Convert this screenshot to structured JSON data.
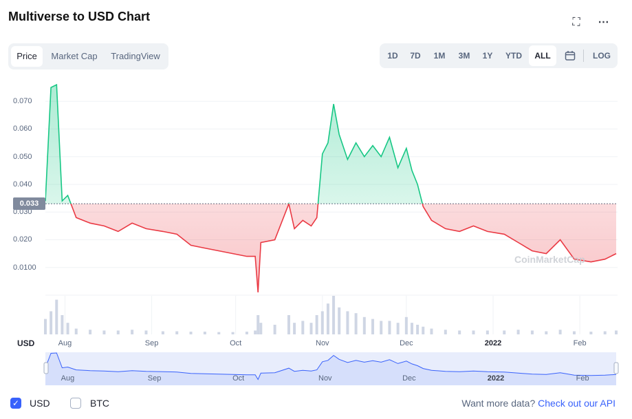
{
  "header": {
    "title": "Multiverse to USD Chart",
    "expand_icon": "expand-icon",
    "more_icon": "more-icon"
  },
  "tabs": [
    {
      "label": "Price",
      "active": true
    },
    {
      "label": "Market Cap",
      "active": false
    },
    {
      "label": "TradingView",
      "active": false
    }
  ],
  "ranges": [
    {
      "label": "1D",
      "active": false
    },
    {
      "label": "7D",
      "active": false
    },
    {
      "label": "1M",
      "active": false
    },
    {
      "label": "3M",
      "active": false
    },
    {
      "label": "1Y",
      "active": false
    },
    {
      "label": "YTD",
      "active": false
    },
    {
      "label": "ALL",
      "active": true
    }
  ],
  "calendar_icon": "calendar-icon",
  "log_label": "LOG",
  "current_price_label": "0.033",
  "watermark": "CoinMarketCap",
  "currency_axis_label": "USD",
  "legend": {
    "usd_label": "USD",
    "usd_checked": true,
    "btc_label": "BTC",
    "btc_checked": false
  },
  "footer": {
    "prefix": "Want more data?",
    "link": "Check out our API"
  },
  "colors": {
    "up": "#16c784",
    "down": "#ea3943",
    "volume": "#cfd6e4",
    "navigator_line": "#3861fb",
    "accent": "#3861fb"
  },
  "chart_data": {
    "type": "line",
    "title": "Multiverse to USD Chart",
    "baseline": 0.033,
    "ylim": [
      0,
      0.078
    ],
    "yticks": [
      "0.0100",
      "0.020",
      "0.030",
      "0.040",
      "0.050",
      "0.060",
      "0.070"
    ],
    "xticks": [
      "Aug",
      "Sep",
      "Oct",
      "Nov",
      "Dec",
      "2022",
      "Feb"
    ],
    "x": [
      "2021-07-25",
      "2021-07-27",
      "2021-07-29",
      "2021-07-31",
      "2021-08-02",
      "2021-08-05",
      "2021-08-10",
      "2021-08-15",
      "2021-08-20",
      "2021-08-25",
      "2021-08-30",
      "2021-09-05",
      "2021-09-10",
      "2021-09-15",
      "2021-09-20",
      "2021-09-25",
      "2021-09-30",
      "2021-10-05",
      "2021-10-08",
      "2021-10-09",
      "2021-10-10",
      "2021-10-15",
      "2021-10-20",
      "2021-10-22",
      "2021-10-25",
      "2021-10-28",
      "2021-10-30",
      "2021-11-01",
      "2021-11-03",
      "2021-11-05",
      "2021-11-07",
      "2021-11-10",
      "2021-11-13",
      "2021-11-16",
      "2021-11-19",
      "2021-11-22",
      "2021-11-25",
      "2021-11-28",
      "2021-12-01",
      "2021-12-03",
      "2021-12-05",
      "2021-12-07",
      "2021-12-10",
      "2021-12-15",
      "2021-12-20",
      "2021-12-25",
      "2021-12-30",
      "2022-01-05",
      "2022-01-10",
      "2022-01-15",
      "2022-01-20",
      "2022-01-25",
      "2022-01-30",
      "2022-02-05",
      "2022-02-10",
      "2022-02-14"
    ],
    "y": [
      0.034,
      0.075,
      0.076,
      0.034,
      0.036,
      0.028,
      0.026,
      0.025,
      0.023,
      0.026,
      0.024,
      0.023,
      0.022,
      0.018,
      0.017,
      0.016,
      0.015,
      0.014,
      0.014,
      0.001,
      0.019,
      0.02,
      0.033,
      0.024,
      0.027,
      0.025,
      0.028,
      0.051,
      0.055,
      0.069,
      0.058,
      0.049,
      0.055,
      0.05,
      0.054,
      0.05,
      0.057,
      0.046,
      0.053,
      0.045,
      0.04,
      0.032,
      0.027,
      0.024,
      0.023,
      0.025,
      0.023,
      0.022,
      0.019,
      0.016,
      0.015,
      0.02,
      0.013,
      0.012,
      0.013,
      0.015
    ],
    "volume": [
      0.4,
      0.6,
      0.9,
      0.5,
      0.3,
      0.15,
      0.12,
      0.1,
      0.1,
      0.12,
      0.1,
      0.08,
      0.08,
      0.07,
      0.07,
      0.06,
      0.06,
      0.07,
      0.1,
      0.5,
      0.3,
      0.25,
      0.5,
      0.3,
      0.35,
      0.3,
      0.5,
      0.6,
      0.8,
      1.0,
      0.7,
      0.6,
      0.55,
      0.45,
      0.4,
      0.35,
      0.35,
      0.3,
      0.45,
      0.3,
      0.25,
      0.2,
      0.15,
      0.12,
      0.1,
      0.1,
      0.1,
      0.1,
      0.12,
      0.1,
      0.08,
      0.12,
      0.08,
      0.07,
      0.08,
      0.1
    ]
  }
}
